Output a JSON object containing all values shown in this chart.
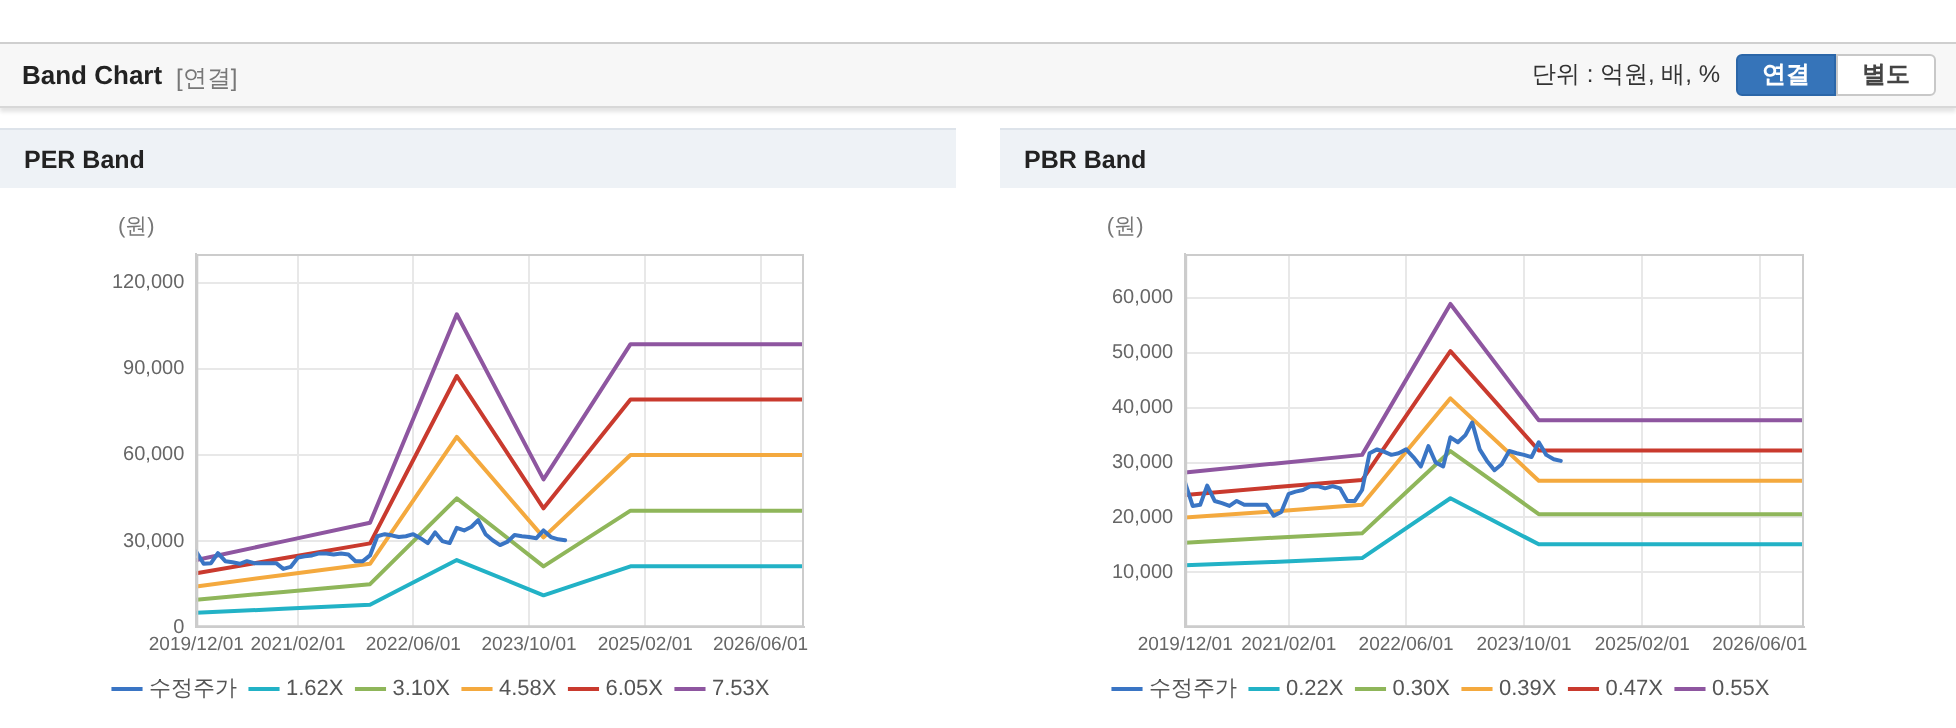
{
  "chart_data": [
    {
      "type": "other",
      "title": "Band Chart",
      "subtitle": "[연결]",
      "annotations": [
        "단위 : 억원, 배, %",
        "연결",
        "별도"
      ]
    },
    {
      "type": "line",
      "title": "PER Band",
      "ylabel": "(원)",
      "grid": true,
      "legend": "bottom",
      "xlim": [
        "2019-12",
        "2026-12"
      ],
      "xticks": [
        {
          "value": "2019-12",
          "label": "2019/12/01"
        },
        {
          "value": "2021-02",
          "label": "2021/02/01"
        },
        {
          "value": "2022-06",
          "label": "2022/06/01"
        },
        {
          "value": "2023-10",
          "label": "2023/10/01"
        },
        {
          "value": "2025-02",
          "label": "2025/02/01"
        },
        {
          "value": "2026-06",
          "label": "2026/06/01"
        }
      ],
      "ylim": [
        0,
        130000
      ],
      "yticks": [
        0,
        {
          "value": 30000,
          "label": "30,000"
        },
        {
          "value": 60000,
          "label": "60,000"
        },
        {
          "value": 90000,
          "label": "90,000"
        },
        {
          "value": 120000,
          "label": "120,000"
        }
      ],
      "x": [
        "2019-12",
        "2020-12",
        "2021-12",
        "2022-12",
        "2023-12",
        "2024-12",
        "2025-12",
        "2026-12"
      ],
      "series": [
        {
          "name": "수정주가",
          "color": "#3a75c4",
          "x": [
            "2019-12",
            "2020-01",
            "2020-02",
            "2020-03",
            "2020-04",
            "2020-05",
            "2020-06",
            "2020-07",
            "2020-08",
            "2020-09",
            "2020-10",
            "2020-11",
            "2020-12",
            "2021-01",
            "2021-02",
            "2021-03",
            "2021-04",
            "2021-05",
            "2021-06",
            "2021-07",
            "2021-08",
            "2021-09",
            "2021-10",
            "2021-11",
            "2021-12",
            "2022-01",
            "2022-02",
            "2022-03",
            "2022-04",
            "2022-05",
            "2022-06",
            "2022-07",
            "2022-08",
            "2022-09",
            "2022-10",
            "2022-11",
            "2022-12",
            "2023-01",
            "2023-02",
            "2023-03",
            "2023-04",
            "2023-05",
            "2023-06",
            "2023-07",
            "2023-08",
            "2023-09",
            "2023-10",
            "2023-11",
            "2023-12",
            "2024-01",
            "2024-02",
            "2024-03"
          ],
          "values": [
            26300,
            22100,
            22300,
            25800,
            23000,
            22600,
            22100,
            23000,
            22300,
            22300,
            22300,
            22300,
            20300,
            21000,
            24300,
            24700,
            25000,
            25700,
            25700,
            25300,
            25700,
            25300,
            23000,
            23000,
            25000,
            31700,
            32400,
            32000,
            31400,
            31700,
            32400,
            31000,
            29300,
            33000,
            30000,
            29300,
            34600,
            33700,
            35000,
            37300,
            32400,
            30300,
            28600,
            29700,
            32100,
            31700,
            31400,
            31000,
            33700,
            31400,
            30600,
            30300
          ]
        },
        {
          "name": "1.62X",
          "color": "#22b2c6",
          "values": [
            5000,
            6400,
            7800,
            23400,
            11100,
            21200,
            21200,
            21200
          ]
        },
        {
          "name": "3.10X",
          "color": "#8fb65a",
          "values": [
            9600,
            12300,
            15000,
            44900,
            21200,
            40600,
            40600,
            40600
          ]
        },
        {
          "name": "4.58X",
          "color": "#f4a93e",
          "values": [
            14200,
            18200,
            22100,
            66300,
            31300,
            60000,
            60000,
            60000
          ]
        },
        {
          "name": "6.05X",
          "color": "#c93a2e",
          "values": [
            18800,
            24000,
            29200,
            87500,
            41400,
            79300,
            79300,
            79300
          ]
        },
        {
          "name": "7.53X",
          "color": "#8e56a0",
          "values": [
            23400,
            29900,
            36400,
            109000,
            51500,
            98600,
            98600,
            98600
          ]
        }
      ]
    },
    {
      "type": "line",
      "title": "PBR Band",
      "ylabel": "(원)",
      "grid": true,
      "legend": "bottom",
      "xlim": [
        "2019-12",
        "2026-12"
      ],
      "xticks": [
        {
          "value": "2019-12",
          "label": "2019/12/01"
        },
        {
          "value": "2021-02",
          "label": "2021/02/01"
        },
        {
          "value": "2022-06",
          "label": "2022/06/01"
        },
        {
          "value": "2023-10",
          "label": "2023/10/01"
        },
        {
          "value": "2025-02",
          "label": "2025/02/01"
        },
        {
          "value": "2026-06",
          "label": "2026/06/01"
        }
      ],
      "ylim": [
        0,
        68000
      ],
      "yticks": [
        {
          "value": 10000,
          "label": "10,000"
        },
        {
          "value": 20000,
          "label": "20,000"
        },
        {
          "value": 30000,
          "label": "30,000"
        },
        {
          "value": 40000,
          "label": "40,000"
        },
        {
          "value": 50000,
          "label": "50,000"
        },
        {
          "value": 60000,
          "label": "60,000"
        }
      ],
      "x": [
        "2019-12",
        "2020-12",
        "2021-12",
        "2022-12",
        "2023-12",
        "2024-12",
        "2025-12",
        "2026-12"
      ],
      "series": [
        {
          "name": "수정주가",
          "color": "#3a75c4",
          "x": [
            "2019-12",
            "2020-01",
            "2020-02",
            "2020-03",
            "2020-04",
            "2020-05",
            "2020-06",
            "2020-07",
            "2020-08",
            "2020-09",
            "2020-10",
            "2020-11",
            "2020-12",
            "2021-01",
            "2021-02",
            "2021-03",
            "2021-04",
            "2021-05",
            "2021-06",
            "2021-07",
            "2021-08",
            "2021-09",
            "2021-10",
            "2021-11",
            "2021-12",
            "2022-01",
            "2022-02",
            "2022-03",
            "2022-04",
            "2022-05",
            "2022-06",
            "2022-07",
            "2022-08",
            "2022-09",
            "2022-10",
            "2022-11",
            "2022-12",
            "2023-01",
            "2023-02",
            "2023-03",
            "2023-04",
            "2023-05",
            "2023-06",
            "2023-07",
            "2023-08",
            "2023-09",
            "2023-10",
            "2023-11",
            "2023-12",
            "2024-01",
            "2024-02",
            "2024-03"
          ],
          "values": [
            26300,
            22100,
            22300,
            25800,
            23000,
            22600,
            22100,
            23000,
            22300,
            22300,
            22300,
            22300,
            20300,
            21000,
            24300,
            24700,
            25000,
            25700,
            25700,
            25300,
            25700,
            25300,
            23000,
            23000,
            25000,
            31700,
            32400,
            32000,
            31400,
            31700,
            32400,
            31000,
            29300,
            33000,
            30000,
            29300,
            34600,
            33700,
            35000,
            37300,
            32400,
            30300,
            28600,
            29700,
            32100,
            31700,
            31400,
            31000,
            33700,
            31400,
            30600,
            30300
          ]
        },
        {
          "name": "0.22X",
          "color": "#22b2c6",
          "values": [
            11300,
            11900,
            12600,
            23500,
            15100,
            15100,
            15100,
            15100
          ]
        },
        {
          "name": "0.30X",
          "color": "#8fb65a",
          "values": [
            15400,
            16300,
            17100,
            32100,
            20600,
            20600,
            20600,
            20600
          ]
        },
        {
          "name": "0.39X",
          "color": "#f4a93e",
          "values": [
            20000,
            21100,
            22300,
            41700,
            26700,
            26700,
            26700,
            26700
          ]
        },
        {
          "name": "0.47X",
          "color": "#c93a2e",
          "values": [
            24100,
            25500,
            26800,
            50300,
            32200,
            32200,
            32200,
            32200
          ]
        },
        {
          "name": "0.55X",
          "color": "#8e56a0",
          "values": [
            28200,
            29800,
            31400,
            58900,
            37700,
            37700,
            37700,
            37700
          ]
        }
      ]
    }
  ]
}
